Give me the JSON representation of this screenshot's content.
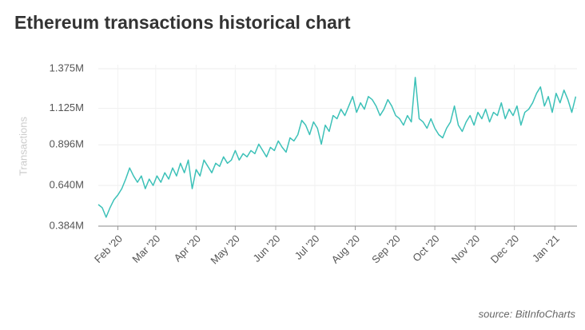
{
  "chart_data": {
    "type": "line",
    "title": "Ethereum transactions historical chart",
    "y_label": "Transactions",
    "source": "source: BitInfoCharts",
    "x": [
      0,
      3,
      6,
      9,
      12,
      15,
      18,
      21,
      24,
      27,
      30,
      33,
      36,
      39,
      42,
      45,
      48,
      51,
      54,
      57,
      60,
      63,
      66,
      69,
      72,
      75,
      78,
      81,
      84,
      87,
      90,
      93,
      96,
      99,
      102,
      105,
      108,
      111,
      114,
      117,
      120,
      123,
      126,
      129,
      132,
      135,
      138,
      141,
      144,
      147,
      150,
      153,
      156,
      159,
      162,
      165,
      168,
      171,
      174,
      177,
      180,
      183,
      186,
      189,
      192,
      195,
      198,
      201,
      204,
      207,
      210,
      213,
      216,
      219,
      222,
      225,
      228,
      231,
      234,
      237,
      240,
      243,
      246,
      249,
      252,
      255,
      258,
      261,
      264,
      267,
      270,
      273,
      276,
      279,
      282,
      285,
      288,
      291,
      294,
      297,
      300,
      303,
      306,
      309,
      312,
      315,
      318,
      321,
      324,
      327,
      330,
      333,
      336,
      339,
      342,
      345,
      348,
      351,
      354,
      357,
      360,
      363,
      366
    ],
    "series": [
      {
        "name": "Transactions",
        "color": "#3cc1b8",
        "values": [
          0.52,
          0.5,
          0.44,
          0.5,
          0.55,
          0.58,
          0.62,
          0.68,
          0.75,
          0.7,
          0.66,
          0.7,
          0.62,
          0.68,
          0.64,
          0.7,
          0.66,
          0.72,
          0.68,
          0.75,
          0.7,
          0.78,
          0.72,
          0.8,
          0.62,
          0.74,
          0.7,
          0.8,
          0.76,
          0.72,
          0.78,
          0.76,
          0.82,
          0.78,
          0.8,
          0.86,
          0.8,
          0.84,
          0.82,
          0.86,
          0.84,
          0.9,
          0.86,
          0.82,
          0.88,
          0.86,
          0.92,
          0.88,
          0.85,
          0.94,
          0.92,
          0.96,
          1.05,
          1.02,
          0.96,
          1.04,
          1.0,
          0.9,
          1.02,
          0.98,
          1.08,
          1.06,
          1.12,
          1.08,
          1.14,
          1.2,
          1.1,
          1.16,
          1.12,
          1.2,
          1.18,
          1.14,
          1.08,
          1.12,
          1.18,
          1.14,
          1.08,
          1.06,
          1.02,
          1.08,
          1.04,
          1.32,
          1.06,
          1.04,
          1.0,
          1.06,
          1.0,
          0.96,
          0.94,
          1.0,
          1.04,
          1.14,
          1.02,
          0.98,
          1.04,
          1.08,
          1.02,
          1.1,
          1.06,
          1.12,
          1.04,
          1.1,
          1.08,
          1.16,
          1.06,
          1.12,
          1.08,
          1.14,
          1.02,
          1.1,
          1.12,
          1.16,
          1.22,
          1.26,
          1.14,
          1.2,
          1.1,
          1.22,
          1.16,
          1.24,
          1.18,
          1.1,
          1.2
        ]
      }
    ],
    "xlim": [
      0,
      367
    ],
    "xticks": [
      {
        "value": 15,
        "label": "Feb '20"
      },
      {
        "value": 44,
        "label": "Mar '20"
      },
      {
        "value": 75,
        "label": "Apr '20"
      },
      {
        "value": 105,
        "label": "May '20"
      },
      {
        "value": 136,
        "label": "Jun '20"
      },
      {
        "value": 166,
        "label": "Jul '20"
      },
      {
        "value": 197,
        "label": "Aug '20"
      },
      {
        "value": 228,
        "label": "Sep '20"
      },
      {
        "value": 258,
        "label": "Oct '20"
      },
      {
        "value": 289,
        "label": "Nov '20"
      },
      {
        "value": 319,
        "label": "Dec '20"
      },
      {
        "value": 350,
        "label": "Jan '21"
      }
    ],
    "ylim": [
      0.384,
      1.4
    ],
    "yticks": [
      {
        "value": 0.384,
        "label": "0.384M"
      },
      {
        "value": 0.64,
        "label": "0.640M"
      },
      {
        "value": 0.896,
        "label": "0.896M"
      },
      {
        "value": 1.125,
        "label": "1.125M"
      },
      {
        "value": 1.375,
        "label": "1.375M"
      }
    ],
    "grid": true
  }
}
